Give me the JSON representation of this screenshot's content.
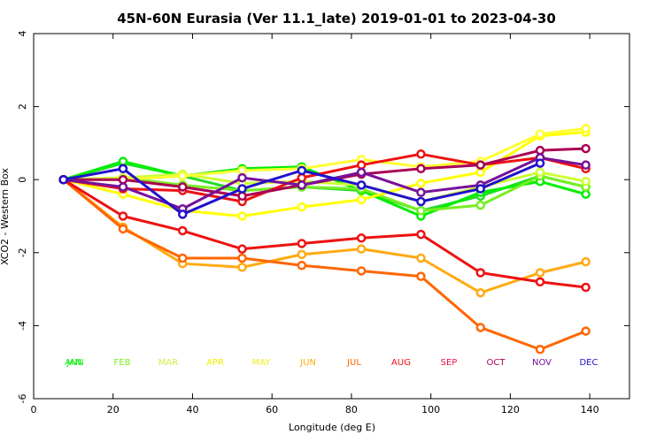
{
  "chart_data": {
    "type": "line",
    "title": "45N-60N Eurasia (Ver 11.1_late)   2019-01-01 to 2023-04-30",
    "xlabel": "Longitude (deg E)",
    "ylabel": "XCO2 - Western Box",
    "xlim": [
      0,
      150
    ],
    "ylim": [
      -6,
      4
    ],
    "x_ticks": [
      0,
      20,
      40,
      60,
      80,
      100,
      120,
      140
    ],
    "y_ticks": [
      -6,
      -4,
      -2,
      0,
      2,
      4
    ],
    "x": [
      7.5,
      22.5,
      37.5,
      52.5,
      67.5,
      82.5,
      97.5,
      112.5,
      127.5,
      139
    ],
    "series": [
      {
        "name": "ANN",
        "color": "#22dd22",
        "values": [
          0,
          0.45,
          0.1,
          -0.3,
          -0.2,
          -0.3,
          -0.85,
          -0.45,
          0.1,
          -0.2
        ]
      },
      {
        "name": "JAN",
        "color": "#00ee00",
        "values": [
          0,
          0.5,
          0.1,
          0.3,
          0.35,
          -0.3,
          -1.0,
          -0.35,
          -0.05,
          -0.4
        ]
      },
      {
        "name": "FEB",
        "color": "#77ee22",
        "values": [
          0,
          0.05,
          -0.15,
          -0.3,
          -0.2,
          -0.25,
          -0.85,
          -0.7,
          0.1,
          -0.2
        ]
      },
      {
        "name": "MAR",
        "color": "#ccff33",
        "values": [
          0,
          0.05,
          0.15,
          -0.1,
          -0.05,
          -0.15,
          -0.6,
          -0.2,
          0.2,
          -0.05
        ]
      },
      {
        "name": "APR",
        "color": "#ffff00",
        "values": [
          0,
          -0.4,
          -0.85,
          -1.0,
          -0.75,
          -0.55,
          -0.1,
          0.2,
          1.2,
          1.3
        ]
      },
      {
        "name": "MAY",
        "color": "#ffff33",
        "values": [
          0,
          0.0,
          0.1,
          0.25,
          0.3,
          0.55,
          0.35,
          0.5,
          1.25,
          1.4
        ]
      },
      {
        "name": "JUN",
        "color": "#ffaa11",
        "values": [
          0,
          -1.3,
          -2.3,
          -2.4,
          -2.05,
          -1.9,
          -2.15,
          -3.1,
          -2.55,
          -2.25
        ]
      },
      {
        "name": "JUL",
        "color": "#ff6600",
        "values": [
          0,
          -1.35,
          -2.15,
          -2.15,
          -2.35,
          -2.5,
          -2.65,
          -4.05,
          -4.65,
          -4.15
        ]
      },
      {
        "name": "AUG",
        "color": "#ee1111",
        "values": [
          0,
          -1.0,
          -1.4,
          -1.9,
          -1.75,
          -1.6,
          -1.5,
          -2.55,
          -2.8,
          -2.95
        ]
      },
      {
        "name": "SEP",
        "color": "#ee1111",
        "values": [
          0,
          -0.25,
          -0.3,
          -0.6,
          0.05,
          0.4,
          0.7,
          0.4,
          0.6,
          0.3
        ]
      },
      {
        "name": "OCT",
        "color": "#aa0055",
        "values": [
          0,
          0.0,
          -0.2,
          -0.45,
          -0.15,
          0.15,
          0.3,
          0.4,
          0.8,
          0.85
        ]
      },
      {
        "name": "NOV",
        "color": "#771199",
        "values": [
          0,
          -0.2,
          -0.8,
          0.05,
          -0.15,
          0.2,
          -0.35,
          -0.15,
          0.6,
          0.4
        ]
      },
      {
        "name": "DEC",
        "color": "#2211cc",
        "values": [
          0,
          0.3,
          -0.95,
          -0.25,
          0.25,
          -0.15,
          -0.6,
          -0.25,
          0.45,
          null
        ]
      }
    ],
    "legend": [
      {
        "label": "ANN",
        "color": "#33ee33"
      },
      {
        "label": "JAN",
        "color": "#00ee00"
      },
      {
        "label": "FEB",
        "color": "#77ee22"
      },
      {
        "label": "MAR",
        "color": "#ccee44"
      },
      {
        "label": "APR",
        "color": "#eeee00"
      },
      {
        "label": "MAY",
        "color": "#eeee22"
      },
      {
        "label": "JUN",
        "color": "#ffaa11"
      },
      {
        "label": "JUL",
        "color": "#ff6600"
      },
      {
        "label": "AUG",
        "color": "#ee1111"
      },
      {
        "label": "SEP",
        "color": "#ee1144"
      },
      {
        "label": "OCT",
        "color": "#aa0055"
      },
      {
        "label": "NOV",
        "color": "#771199"
      },
      {
        "label": "DEC",
        "color": "#2211cc"
      }
    ],
    "legend_position": "bottom",
    "grid": false
  }
}
